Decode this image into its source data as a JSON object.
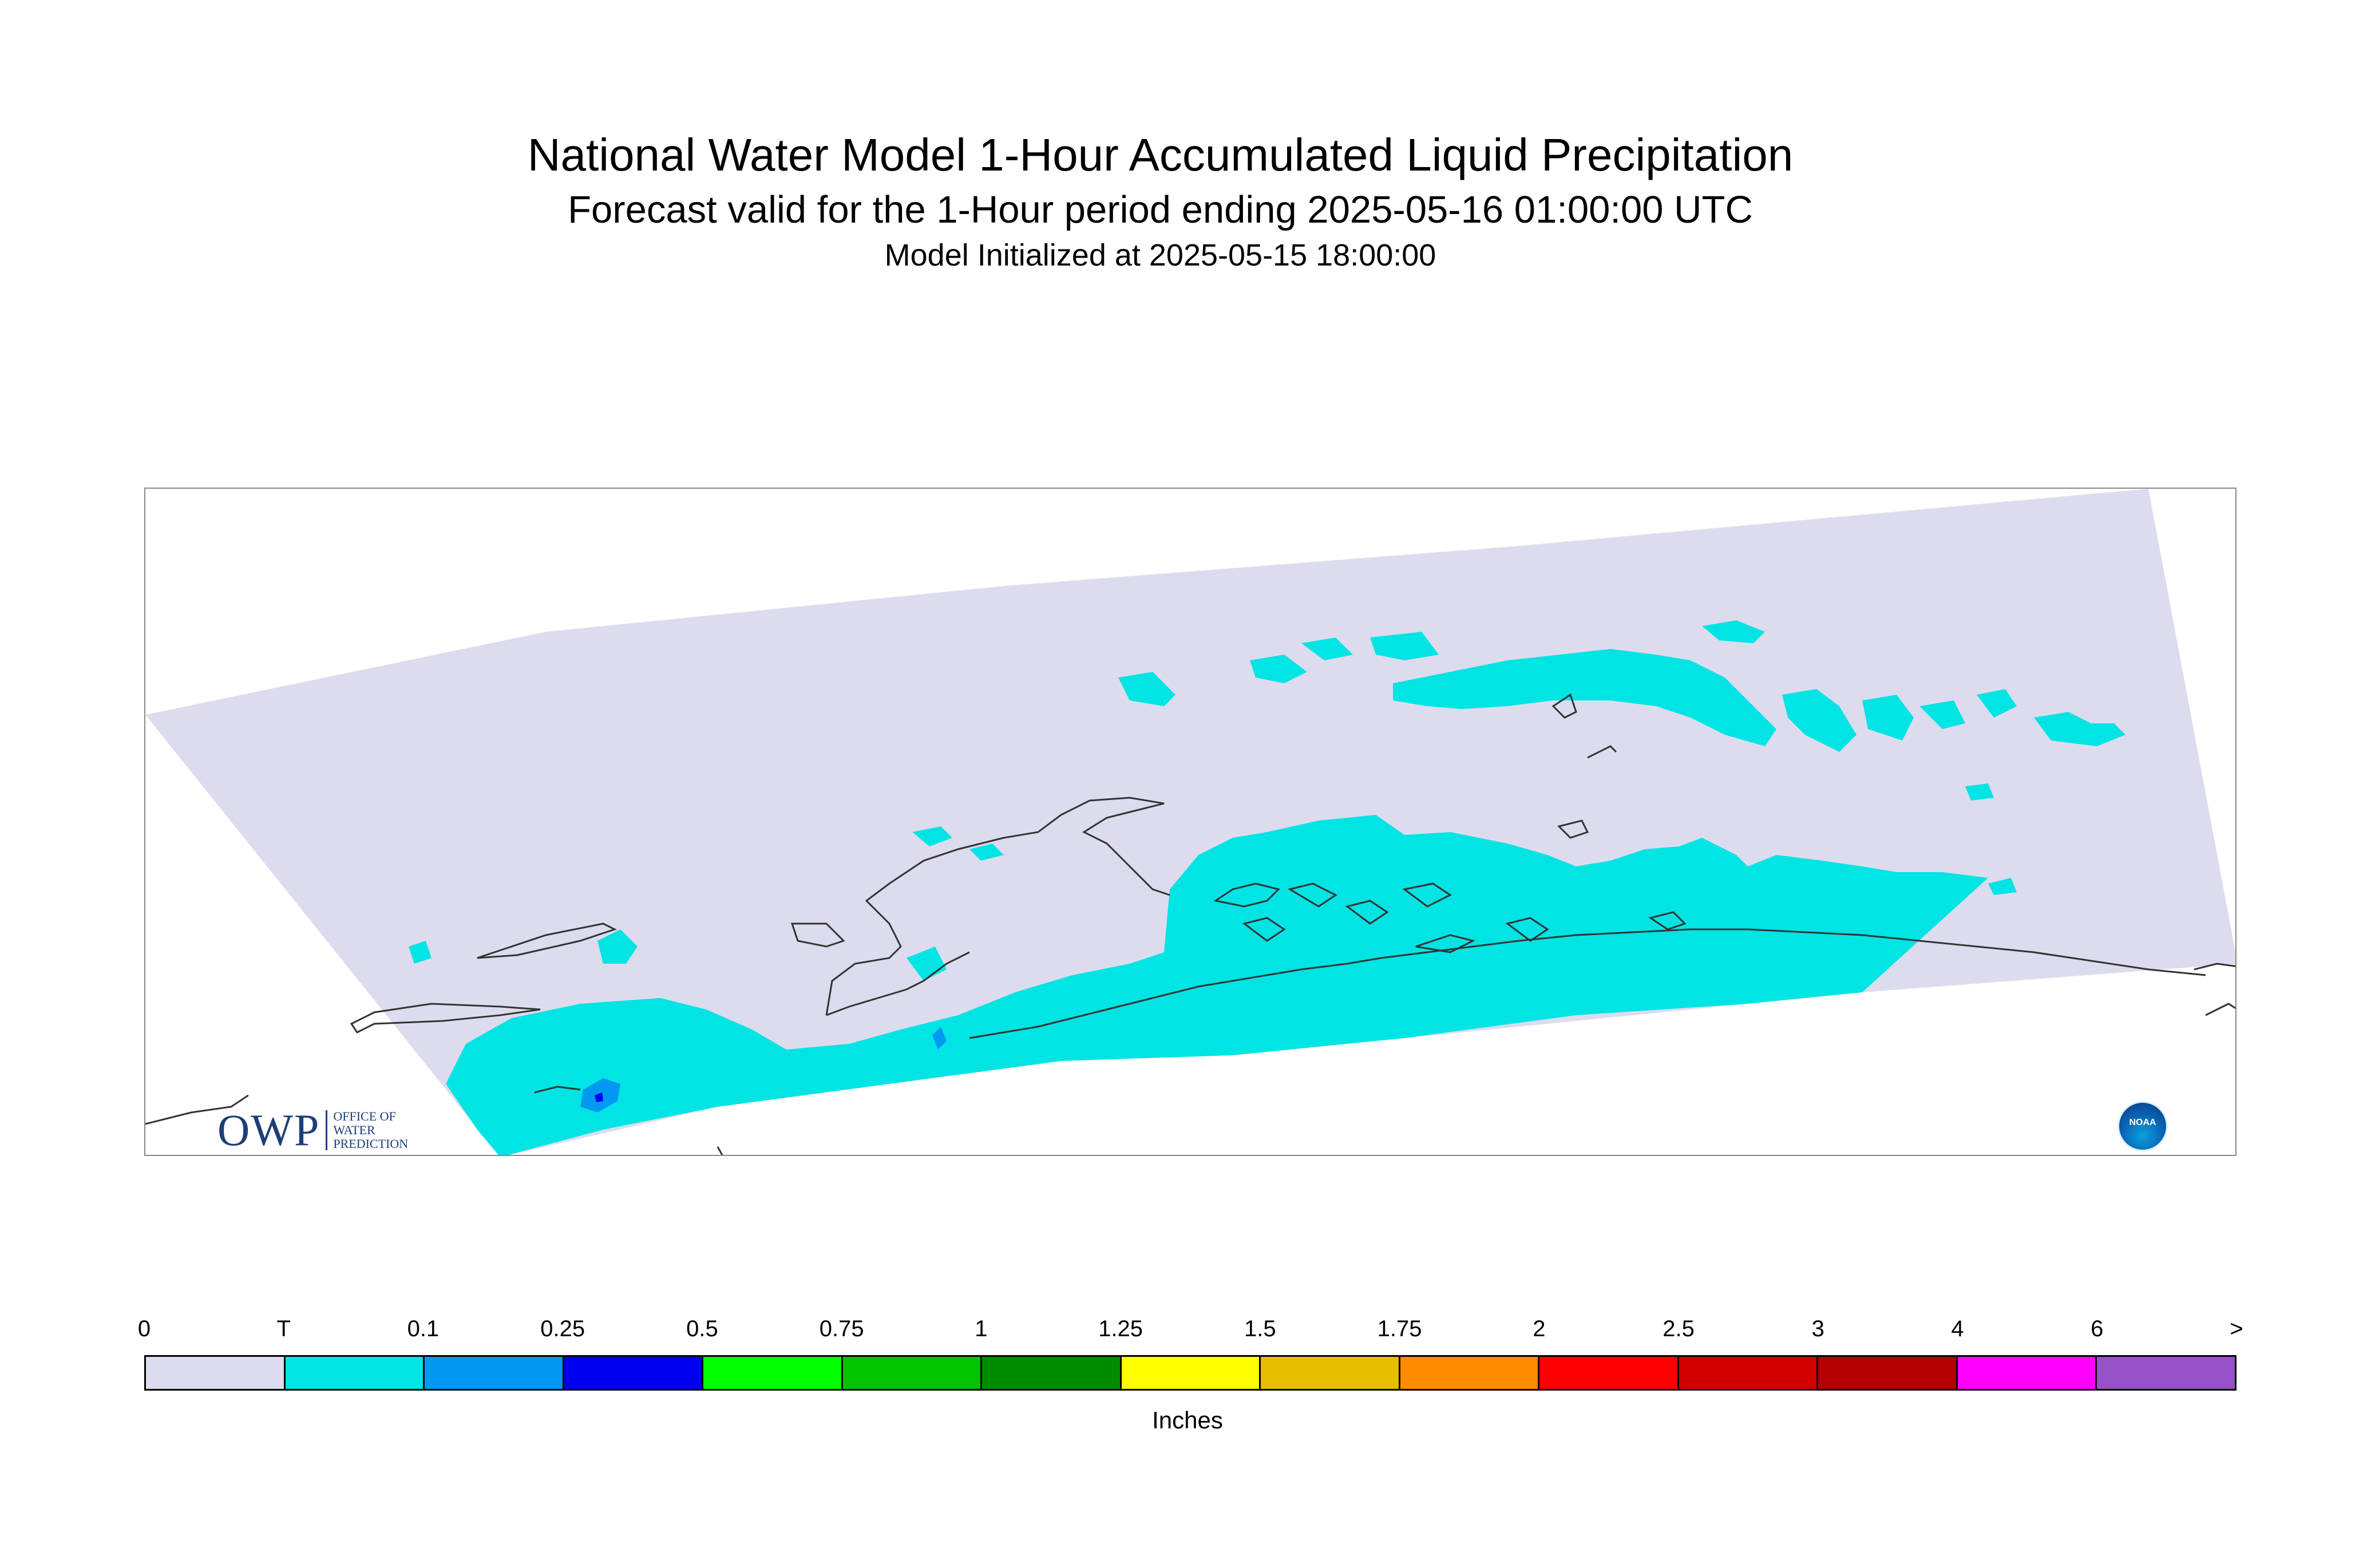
{
  "header": {
    "title": "National Water Model 1-Hour Accumulated Liquid Precipitation",
    "subtitle": "Forecast valid for the 1-Hour period ending 2025-05-16 01:00:00 UTC",
    "init": "Model Initialized at 2025-05-15 18:00:00"
  },
  "logos": {
    "owp_big": "OWP",
    "owp_line1": "OFFICE OF",
    "owp_line2": "WATER",
    "owp_line3": "PREDICTION",
    "noaa": "NOAA"
  },
  "colors": {
    "domain_fill": "#dcdcee",
    "trace": "#00e4e4",
    "light_blue": "#0098f0",
    "coastline": "#333333"
  },
  "legend": {
    "labels": [
      "0",
      "T",
      "0.1",
      "0.25",
      "0.5",
      "0.75",
      "1",
      "1.25",
      "1.5",
      "1.75",
      "2",
      "2.5",
      "3",
      "4",
      "6",
      ">"
    ],
    "colors": [
      "#dcdcee",
      "#00e4e4",
      "#0098f0",
      "#0000f0",
      "#00ff00",
      "#00c400",
      "#008c00",
      "#ffff00",
      "#e6be00",
      "#ff8c00",
      "#ff0000",
      "#d20000",
      "#b40000",
      "#ff00ff",
      "#9650c8"
    ],
    "units": "Inches"
  }
}
